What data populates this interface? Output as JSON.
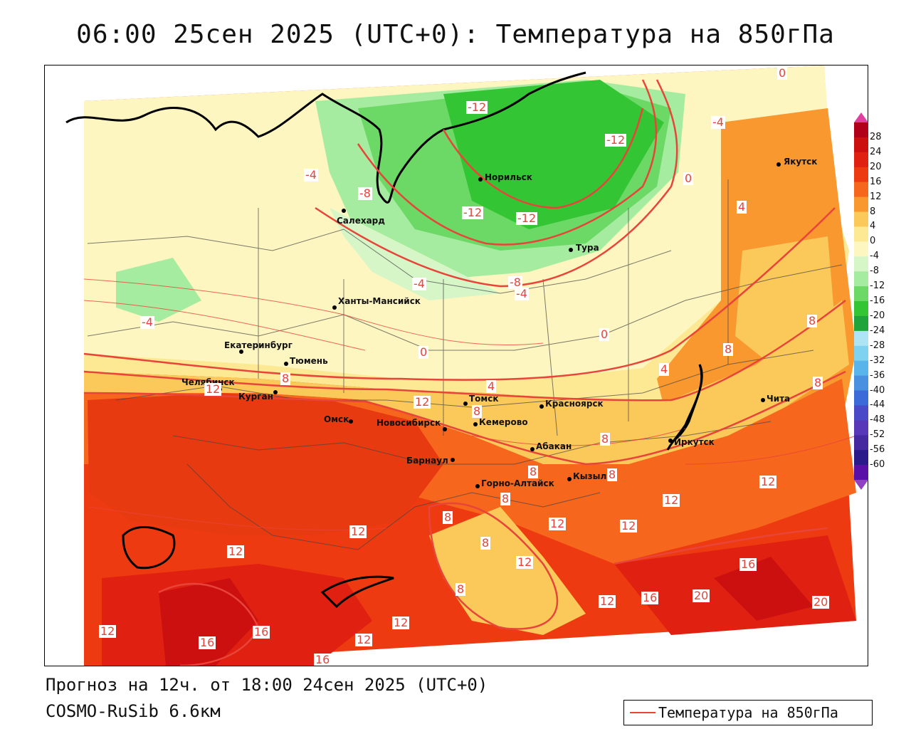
{
  "title": "06:00 25сен 2025 (UTC+0): Температура на 850гПа",
  "forecast_text": "Прогноз на 12ч. от 18:00 24сен 2025 (UTC+0)",
  "model_text": "COSMO-RuSib 6.6км",
  "legend_label": "Температура на 850гПа",
  "colorbar": {
    "ticks": [
      "28",
      "24",
      "20",
      "16",
      "12",
      "8",
      "4",
      "0",
      "-4",
      "-8",
      "-12",
      "-16",
      "-20",
      "-24",
      "-28",
      "-32",
      "-36",
      "-40",
      "-44",
      "-48",
      "-52",
      "-56",
      "-60"
    ],
    "colors": [
      "#b0001a",
      "#cc1010",
      "#e02010",
      "#ee3a10",
      "#f6661c",
      "#f8982e",
      "#fbc95a",
      "#fde994",
      "#fdf6c0",
      "#d6f6c8",
      "#a6eca0",
      "#6cd866",
      "#34c534",
      "#1ea43a",
      "#aee4f4",
      "#7fd2f0",
      "#5ab4ec",
      "#4a90e0",
      "#3c6ad8",
      "#4a4ac8",
      "#5838b8",
      "#4628a0",
      "#2a1a8a",
      "#5a10a8"
    ],
    "top_color": "#e040a0",
    "bottom_color": "#9040c0"
  },
  "cities": [
    {
      "name": "Норильск"
    },
    {
      "name": "Якутск"
    },
    {
      "name": "Салехард"
    },
    {
      "name": "Тура"
    },
    {
      "name": "Ханты-Мансийск"
    },
    {
      "name": "Екатеринбург"
    },
    {
      "name": "Тюмень"
    },
    {
      "name": "Челябинск"
    },
    {
      "name": "Курган"
    },
    {
      "name": "Омск"
    },
    {
      "name": "Новосибирск"
    },
    {
      "name": "Томск"
    },
    {
      "name": "Кемерово"
    },
    {
      "name": "Красноярск"
    },
    {
      "name": "Барнаул"
    },
    {
      "name": "Абакан"
    },
    {
      "name": "Иркутск"
    },
    {
      "name": "Чита"
    },
    {
      "name": "Кызыл"
    },
    {
      "name": "Горно-Алтайск"
    }
  ],
  "isolines": [
    "-12",
    "-12",
    "-12",
    "-12",
    "-4",
    "-8",
    "-4",
    "-4",
    "-4",
    "-8",
    "-4",
    "0",
    "0",
    "0",
    "4",
    "4",
    "4",
    "8",
    "8",
    "8",
    "8",
    "8",
    "8",
    "8",
    "8",
    "8",
    "8",
    "8",
    "8",
    "12",
    "12",
    "12",
    "12",
    "12",
    "12",
    "12",
    "12",
    "12",
    "12",
    "12",
    "12",
    "12",
    "16",
    "16",
    "16",
    "16",
    "20",
    "20",
    "16",
    "0"
  ]
}
